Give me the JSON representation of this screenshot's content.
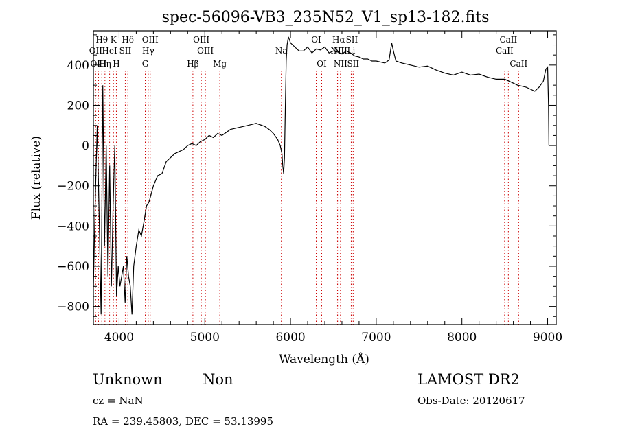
{
  "chart_data": {
    "type": "line",
    "title": "spec-56096-VB3_235N52_V1_sp13-182.fits",
    "xlabel": "Wavelength (Å)",
    "ylabel": "Flux (relative)",
    "xlim": [
      3700,
      9100
    ],
    "ylim": [
      -890,
      570
    ],
    "x_ticks": [
      4000,
      5000,
      6000,
      7000,
      8000,
      9000
    ],
    "y_ticks": [
      -800,
      -600,
      -400,
      -200,
      0,
      200,
      400
    ],
    "x_tick_labels": [
      "4000",
      "5000",
      "6000",
      "7000",
      "8000",
      "9000"
    ],
    "y_tick_labels": [
      "−800",
      "−600",
      "−400",
      "−200",
      "0",
      "200",
      "400"
    ],
    "grid": false,
    "series": [
      {
        "color": "#000000",
        "x": [
          3700,
          3720,
          3745,
          3770,
          3790,
          3810,
          3830,
          3850,
          3870,
          3890,
          3910,
          3930,
          3950,
          3970,
          3990,
          4010,
          4030,
          4050,
          4070,
          4090,
          4110,
          4130,
          4150,
          4170,
          4200,
          4230,
          4260,
          4290,
          4320,
          4350,
          4400,
          4450,
          4500,
          4550,
          4600,
          4650,
          4700,
          4750,
          4800,
          4850,
          4900,
          4950,
          5000,
          5050,
          5100,
          5150,
          5200,
          5300,
          5400,
          5500,
          5600,
          5700,
          5750,
          5800,
          5850,
          5880,
          5900,
          5910,
          5920,
          5930,
          5940,
          5950,
          5960,
          5975,
          6000,
          6050,
          6100,
          6150,
          6200,
          6250,
          6300,
          6350,
          6400,
          6450,
          6500,
          6550,
          6600,
          6650,
          6700,
          6750,
          6800,
          6850,
          6900,
          6950,
          7000,
          7050,
          7100,
          7150,
          7180,
          7200,
          7230,
          7300,
          7400,
          7500,
          7600,
          7700,
          7800,
          7900,
          8000,
          8100,
          8200,
          8300,
          8400,
          8500,
          8600,
          8650,
          8700,
          8750,
          8800,
          8850,
          8900,
          8950,
          8980,
          9000,
          9010,
          9015
        ],
        "y": [
          -700,
          -300,
          100,
          -400,
          -840,
          300,
          -500,
          0,
          -650,
          -100,
          -700,
          -300,
          0,
          -750,
          -600,
          -700,
          -650,
          -600,
          -780,
          -550,
          -650,
          -700,
          -840,
          -600,
          -500,
          -420,
          -450,
          -380,
          -300,
          -280,
          -200,
          -150,
          -140,
          -80,
          -60,
          -40,
          -30,
          -20,
          0,
          10,
          0,
          20,
          30,
          50,
          40,
          60,
          50,
          80,
          90,
          100,
          110,
          95,
          80,
          60,
          30,
          0,
          -40,
          -100,
          -140,
          -60,
          200,
          420,
          500,
          540,
          510,
          490,
          470,
          470,
          490,
          460,
          480,
          475,
          490,
          460,
          470,
          465,
          455,
          470,
          460,
          445,
          440,
          430,
          430,
          420,
          420,
          415,
          410,
          425,
          510,
          470,
          420,
          410,
          400,
          390,
          395,
          375,
          360,
          350,
          365,
          350,
          355,
          340,
          330,
          330,
          310,
          300,
          295,
          290,
          280,
          270,
          290,
          320,
          380,
          390,
          200,
          0
        ]
      }
    ],
    "emission_lines": [
      {
        "name": "Hθ",
        "wl": 3798,
        "row": 0
      },
      {
        "name": "K",
        "wl": 3934,
        "row": 0
      },
      {
        "name": "Hδ",
        "wl": 4102,
        "row": 0
      },
      {
        "name": "OIII",
        "wl": 4363,
        "row": 0
      },
      {
        "name": "OIII",
        "wl": 4959,
        "row": 0
      },
      {
        "name": "OI",
        "wl": 6300,
        "row": 0
      },
      {
        "name": "Hα",
        "wl": 6563,
        "row": 0
      },
      {
        "name": "SII",
        "wl": 6716,
        "row": 0
      },
      {
        "name": "CaII",
        "wl": 8542,
        "row": 0
      },
      {
        "name": "OII",
        "wl": 3727,
        "row": 1
      },
      {
        "name": "HeI",
        "wl": 3889,
        "row": 1
      },
      {
        "name": "SII",
        "wl": 4072,
        "row": 1
      },
      {
        "name": "Hγ",
        "wl": 4340,
        "row": 1
      },
      {
        "name": "OIII",
        "wl": 5007,
        "row": 1
      },
      {
        "name": "Na",
        "wl": 5893,
        "row": 1
      },
      {
        "name": "NII",
        "wl": 6548,
        "row": 1
      },
      {
        "name": "NII",
        "wl": 6583,
        "row": 1
      },
      {
        "name": "Li",
        "wl": 6708,
        "row": 1
      },
      {
        "name": "CaII",
        "wl": 8498,
        "row": 1
      },
      {
        "name": "OIII",
        "wl": 3760,
        "row": 2
      },
      {
        "name": "Hη",
        "wl": 3835,
        "row": 2
      },
      {
        "name": "H",
        "wl": 3968,
        "row": 2
      },
      {
        "name": "G",
        "wl": 4305,
        "row": 2
      },
      {
        "name": "Hβ",
        "wl": 4861,
        "row": 2
      },
      {
        "name": "Mg",
        "wl": 5175,
        "row": 2
      },
      {
        "name": "OI",
        "wl": 6364,
        "row": 2
      },
      {
        "name": "NII",
        "wl": 6583,
        "row": 2
      },
      {
        "name": "SII",
        "wl": 6731,
        "row": 2
      },
      {
        "name": "CaII",
        "wl": 8662,
        "row": 2
      }
    ],
    "line_color": "#cc0000"
  },
  "info": {
    "class": "Unknown",
    "subclass": "Non",
    "survey": "LAMOST DR2",
    "cz": "cz = NaN",
    "obs_date": "Obs-Date: 20120617",
    "coords": "RA = 239.45803, DEC =  53.13995"
  }
}
